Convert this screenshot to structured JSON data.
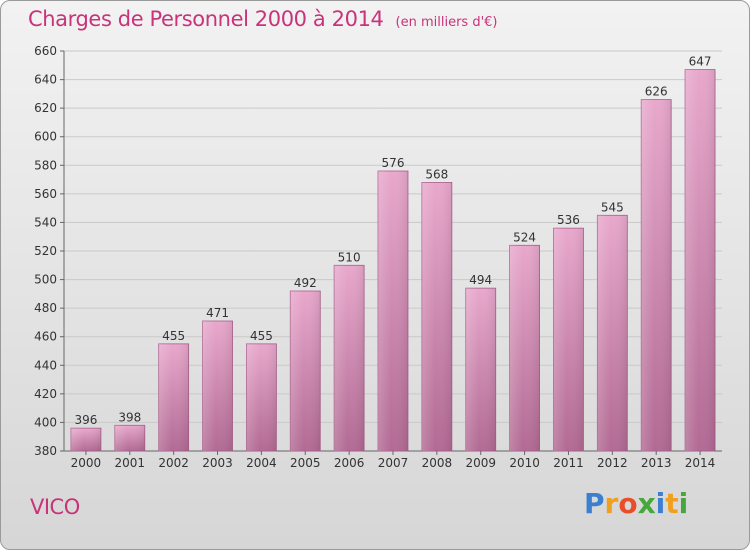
{
  "title": "Charges de Personnel 2000 à 2014",
  "subtitle": "(en milliers d'€)",
  "commune": "VICO",
  "logo": {
    "letters": [
      "P",
      "r",
      "o",
      "x",
      "i",
      "t",
      "i"
    ],
    "colors": [
      "#3a7fd0",
      "#f0a020",
      "#e84f28",
      "#46a83c",
      "#3a7fd0",
      "#f0a020",
      "#46a83c"
    ]
  },
  "colors": {
    "bar_light": "#e8a8cc",
    "bar_dark": "#b26a94",
    "accent": "#c8337a"
  },
  "chart_data": {
    "type": "bar",
    "categories": [
      "2000",
      "2001",
      "2002",
      "2003",
      "2004",
      "2005",
      "2006",
      "2007",
      "2008",
      "2009",
      "2010",
      "2011",
      "2012",
      "2013",
      "2014"
    ],
    "values": [
      396,
      398,
      455,
      471,
      455,
      492,
      510,
      576,
      568,
      494,
      524,
      536,
      545,
      626,
      647
    ],
    "ylim": [
      380,
      660
    ],
    "yticks": [
      380,
      400,
      420,
      440,
      460,
      480,
      500,
      520,
      540,
      560,
      580,
      600,
      620,
      640,
      660
    ],
    "grid": true
  }
}
